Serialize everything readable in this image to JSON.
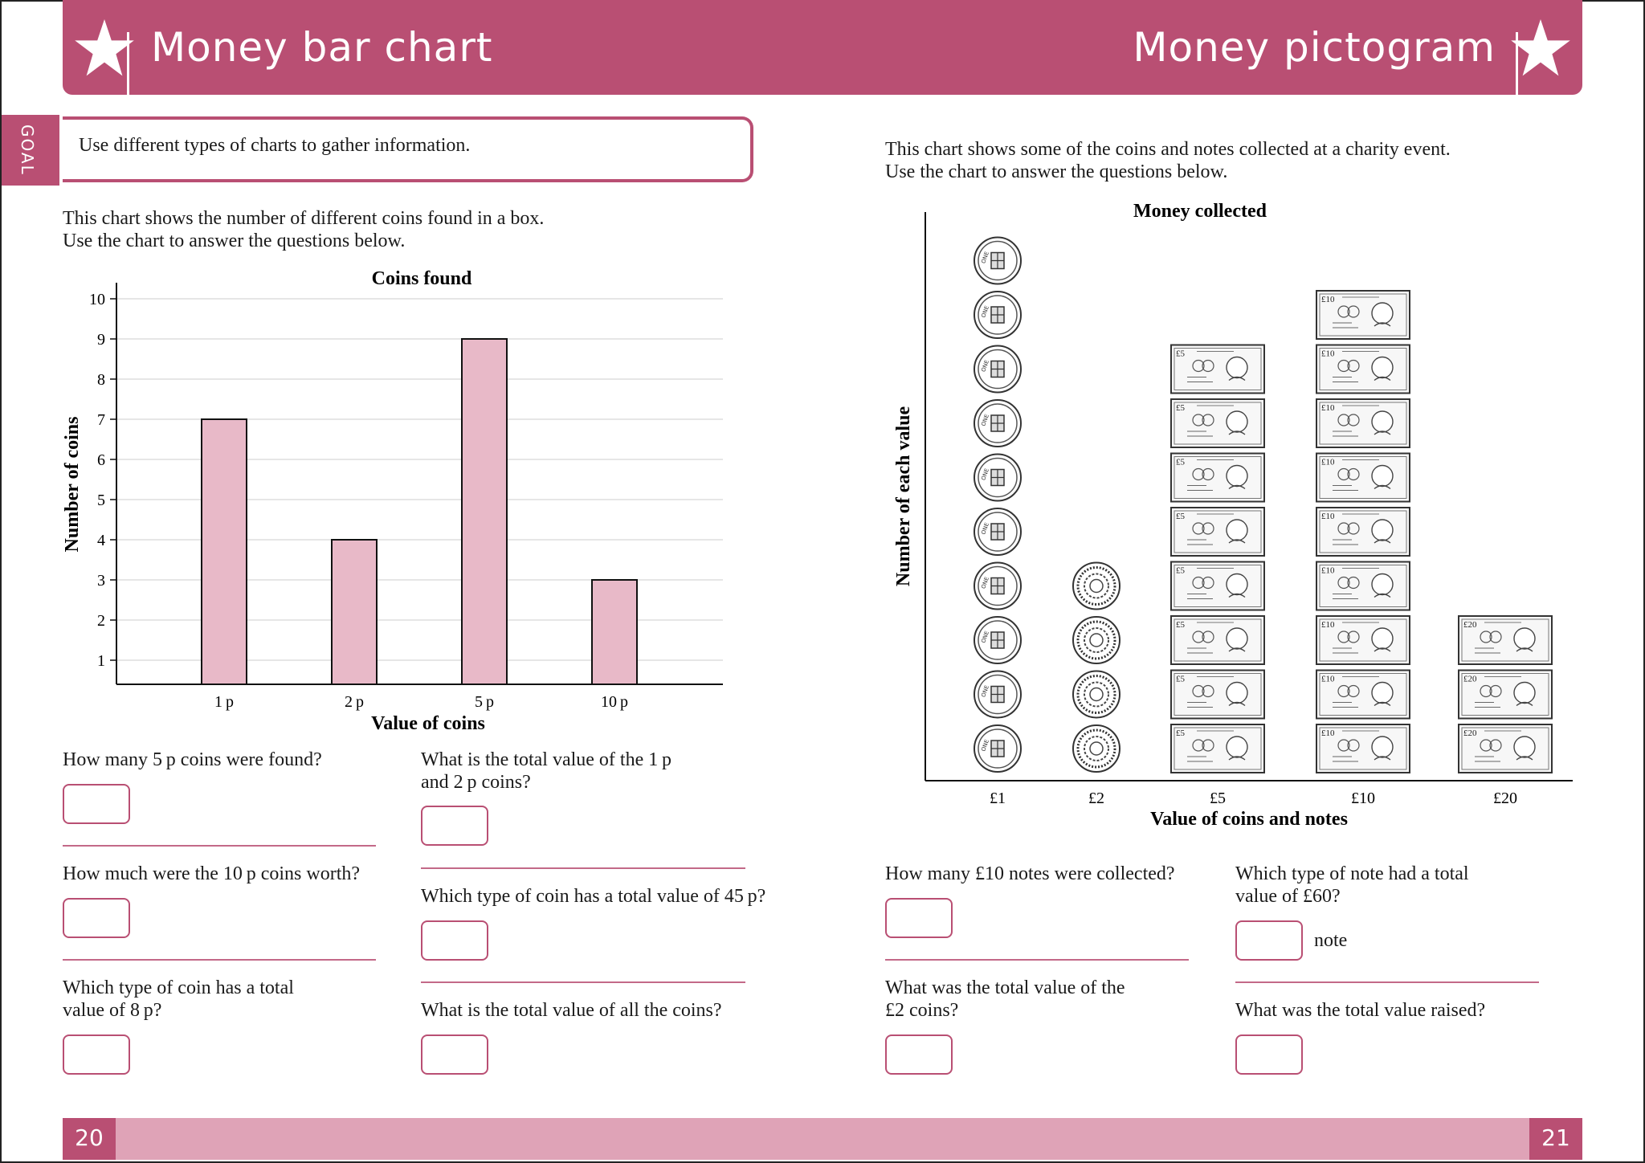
{
  "header": {
    "left_title": "Money bar chart",
    "right_title": "Money pictogram"
  },
  "goal": {
    "tab_label": "GOAL",
    "text": "Use different types of charts to gather information."
  },
  "left": {
    "intro_line1": "This chart shows the number of different coins found in a box.",
    "intro_line2": "Use the chart to answer the questions below.",
    "questions": [
      {
        "line1": "How many 5 p coins were found?",
        "line2": ""
      },
      {
        "line1": "What is the total value of the 1 p",
        "line2": "and 2 p coins?"
      },
      {
        "line1": "How much were the 10 p coins worth?",
        "line2": ""
      },
      {
        "line1": "Which type of coin has a total value of 45 p?",
        "line2": ""
      },
      {
        "line1": "Which type of coin has a total",
        "line2": "value of 8 p?"
      },
      {
        "line1": "What is the total value of all the coins?",
        "line2": ""
      }
    ]
  },
  "right": {
    "intro_line1": "This chart shows some of the coins and notes collected at a charity event.",
    "intro_line2": "Use the chart to answer the questions below.",
    "questions": [
      {
        "line1": "How many £10 notes were collected?",
        "line2": ""
      },
      {
        "line1": "Which type of note had a total",
        "line2": "value of £60?"
      },
      {
        "line1": "What was the total value of the",
        "line2": "£2 coins?"
      },
      {
        "line1": "What was the total value raised?",
        "line2": ""
      }
    ],
    "note_word": "note"
  },
  "chart_data": [
    {
      "type": "bar",
      "title": "Coins found",
      "xlabel": "Value of coins",
      "ylabel": "Number of coins",
      "categories": [
        "1 p",
        "2 p",
        "5 p",
        "10 p"
      ],
      "values": [
        7,
        4,
        9,
        3
      ],
      "ylim": [
        0,
        10
      ],
      "yticks": [
        1,
        2,
        3,
        4,
        5,
        6,
        7,
        8,
        9,
        10
      ],
      "grid": true,
      "bar_color": "#e8b9c8"
    },
    {
      "type": "pictogram",
      "title": "Money collected",
      "xlabel": "Value of coins and notes",
      "ylabel": "Number of each value",
      "categories": [
        "£1",
        "£2",
        "£5",
        "£10",
        "£20"
      ],
      "values": [
        10,
        4,
        8,
        9,
        3
      ],
      "icons": [
        "coin-one-pound",
        "coin-two-pounds",
        "note-five-pounds",
        "note-ten-pounds",
        "note-twenty-pounds"
      ],
      "icon_labels": {
        "note5": "£5",
        "note10": "£10",
        "note20": "£20"
      }
    }
  ],
  "footer": {
    "left_page": "20",
    "right_page": "21"
  },
  "colors": {
    "accent": "#b94f73",
    "accent_light": "#dfa3b7",
    "bar": "#e8b9c8"
  }
}
